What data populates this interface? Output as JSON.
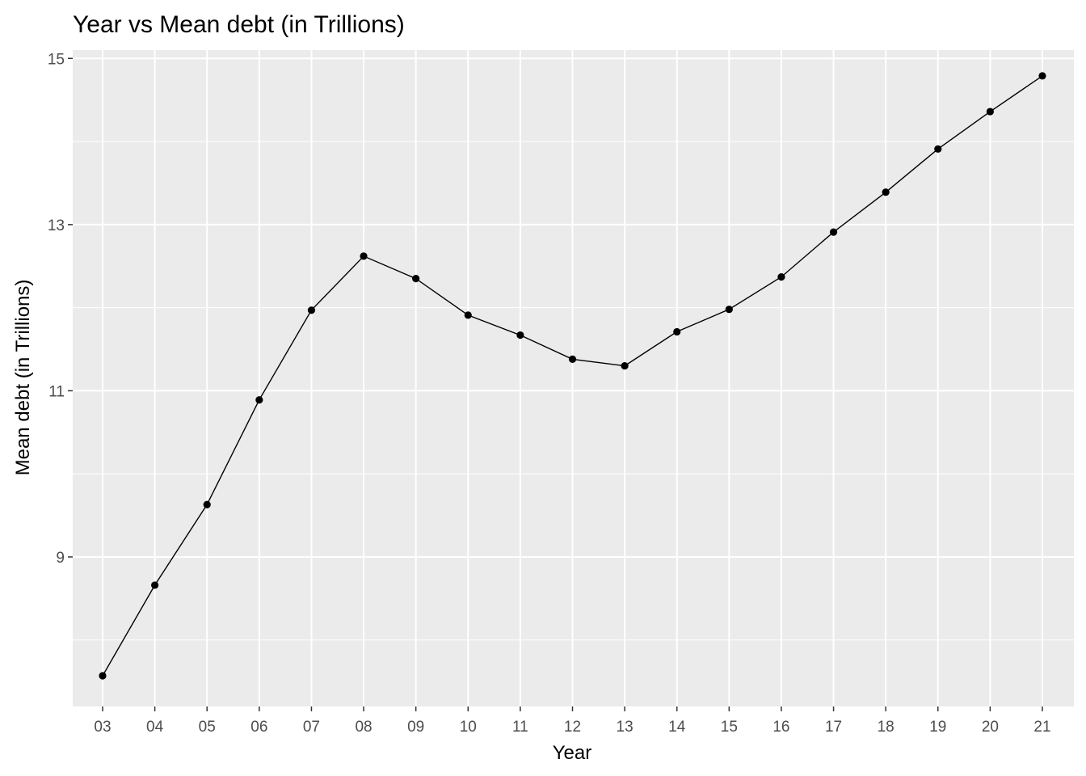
{
  "chart_data": {
    "type": "line",
    "title": "Year vs Mean debt (in Trillions)",
    "xlabel": "Year",
    "ylabel": "Mean debt (in Trillions)",
    "categories": [
      "03",
      "04",
      "05",
      "06",
      "07",
      "08",
      "09",
      "10",
      "11",
      "12",
      "13",
      "14",
      "15",
      "16",
      "17",
      "18",
      "19",
      "20",
      "21"
    ],
    "series": [
      {
        "values": [
          7.57,
          8.66,
          9.63,
          10.89,
          11.97,
          12.62,
          12.35,
          11.91,
          11.67,
          11.38,
          11.3,
          11.71,
          11.98,
          12.37,
          12.91,
          13.39,
          13.91,
          14.36,
          14.79
        ],
        "color": "#000000"
      }
    ],
    "ylim": [
      7.2,
      15.1
    ],
    "yticks": [
      9,
      11,
      13,
      15
    ],
    "yminor": [
      8,
      10,
      12,
      14
    ],
    "grid": true,
    "legend": "none",
    "panel_color": "#ebebeb"
  }
}
